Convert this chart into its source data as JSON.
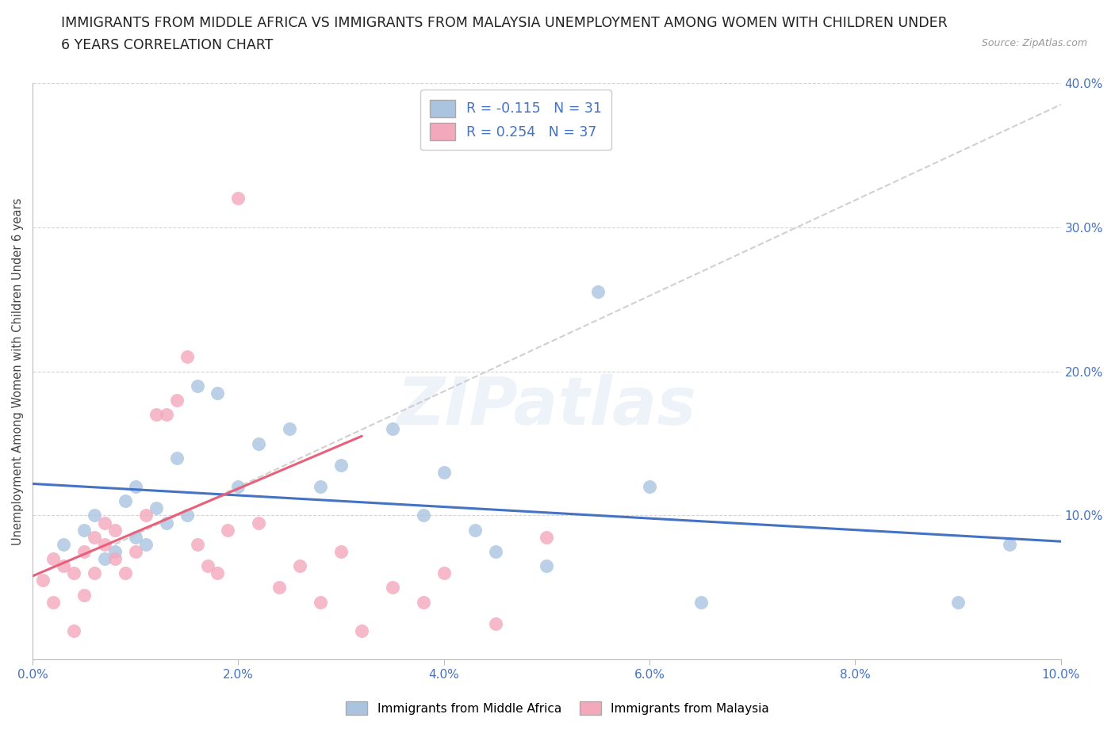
{
  "title_line1": "IMMIGRANTS FROM MIDDLE AFRICA VS IMMIGRANTS FROM MALAYSIA UNEMPLOYMENT AMONG WOMEN WITH CHILDREN UNDER",
  "title_line2": "6 YEARS CORRELATION CHART",
  "source": "Source: ZipAtlas.com",
  "ylabel": "Unemployment Among Women with Children Under 6 years",
  "xlim": [
    0.0,
    0.1
  ],
  "ylim": [
    0.0,
    0.4
  ],
  "xticks": [
    0.0,
    0.02,
    0.04,
    0.06,
    0.08,
    0.1
  ],
  "xticklabels": [
    "0.0%",
    "2.0%",
    "4.0%",
    "6.0%",
    "8.0%",
    "10.0%"
  ],
  "yticks": [
    0.0,
    0.1,
    0.2,
    0.3,
    0.4
  ],
  "yticklabels": [
    "",
    "10.0%",
    "20.0%",
    "30.0%",
    "40.0%"
  ],
  "color_blue": "#aac4e0",
  "color_pink": "#f4a8bc",
  "line_blue": "#4472c4",
  "line_pink": "#e8607a",
  "line_gray": "#c8c8c8",
  "R_blue": -0.115,
  "N_blue": 31,
  "R_pink": 0.254,
  "N_pink": 37,
  "watermark": "ZIPatlas",
  "legend_label_blue": "Immigrants from Middle Africa",
  "legend_label_pink": "Immigrants from Malaysia",
  "blue_x": [
    0.003,
    0.005,
    0.006,
    0.007,
    0.008,
    0.009,
    0.01,
    0.01,
    0.011,
    0.012,
    0.013,
    0.014,
    0.015,
    0.016,
    0.018,
    0.02,
    0.022,
    0.025,
    0.028,
    0.03,
    0.035,
    0.038,
    0.04,
    0.043,
    0.045,
    0.05,
    0.055,
    0.06,
    0.065,
    0.09,
    0.095
  ],
  "blue_y": [
    0.08,
    0.09,
    0.1,
    0.07,
    0.075,
    0.11,
    0.085,
    0.12,
    0.08,
    0.105,
    0.095,
    0.14,
    0.1,
    0.19,
    0.185,
    0.12,
    0.15,
    0.16,
    0.12,
    0.135,
    0.16,
    0.1,
    0.13,
    0.09,
    0.075,
    0.065,
    0.255,
    0.12,
    0.04,
    0.04,
    0.08
  ],
  "pink_x": [
    0.001,
    0.002,
    0.002,
    0.003,
    0.004,
    0.004,
    0.005,
    0.005,
    0.006,
    0.006,
    0.007,
    0.007,
    0.008,
    0.008,
    0.009,
    0.01,
    0.011,
    0.012,
    0.013,
    0.014,
    0.015,
    0.016,
    0.017,
    0.018,
    0.019,
    0.02,
    0.022,
    0.024,
    0.026,
    0.028,
    0.03,
    0.032,
    0.035,
    0.038,
    0.04,
    0.045,
    0.05
  ],
  "pink_y": [
    0.055,
    0.04,
    0.07,
    0.065,
    0.06,
    0.02,
    0.075,
    0.045,
    0.085,
    0.06,
    0.08,
    0.095,
    0.07,
    0.09,
    0.06,
    0.075,
    0.1,
    0.17,
    0.17,
    0.18,
    0.21,
    0.08,
    0.065,
    0.06,
    0.09,
    0.32,
    0.095,
    0.05,
    0.065,
    0.04,
    0.075,
    0.02,
    0.05,
    0.04,
    0.06,
    0.025,
    0.085
  ],
  "blue_trend_x0": 0.0,
  "blue_trend_y0": 0.122,
  "blue_trend_x1": 0.1,
  "blue_trend_y1": 0.082,
  "pink_trend_x0": 0.0,
  "pink_trend_y0": 0.058,
  "pink_trend_x1": 0.032,
  "pink_trend_y1": 0.155,
  "gray_trend_x0": 0.008,
  "gray_trend_y0": 0.08,
  "gray_trend_x1": 0.1,
  "gray_trend_y1": 0.385
}
